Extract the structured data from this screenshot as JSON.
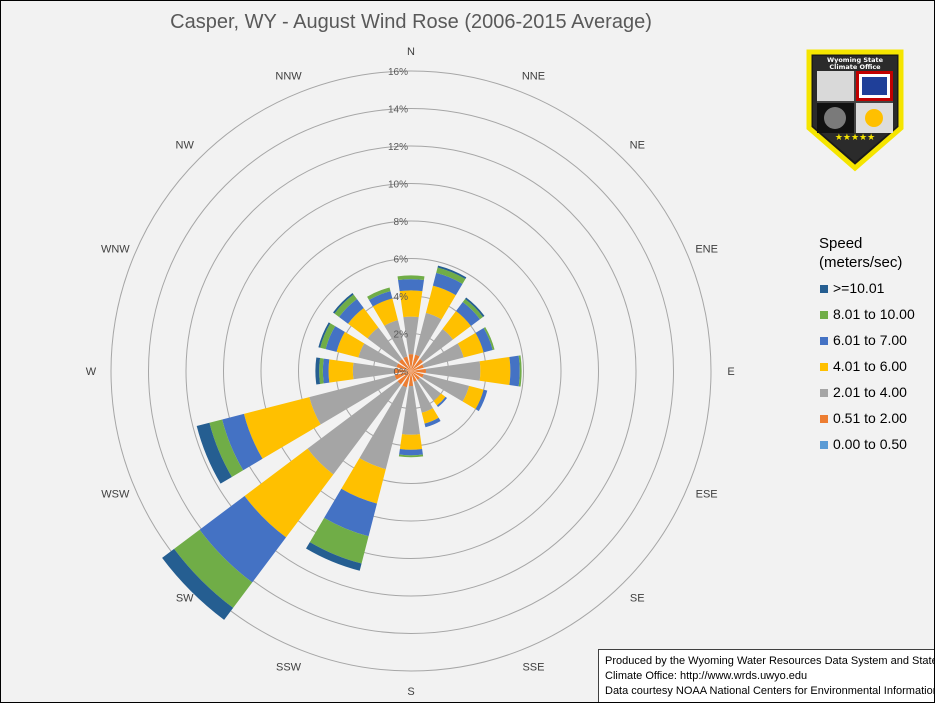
{
  "chart_data": {
    "type": "wind_rose",
    "title": "Casper, WY - August Wind Rose (2006-2015 Average)",
    "radial_axis": {
      "ticks": [
        "0%",
        "2%",
        "4%",
        "6%",
        "8%",
        "10%",
        "12%",
        "14%",
        "16%"
      ],
      "max": 16,
      "unit": "%"
    },
    "directions": [
      "N",
      "NNE",
      "NE",
      "ENE",
      "E",
      "ESE",
      "SE",
      "SSE",
      "S",
      "SSW",
      "SW",
      "WSW",
      "W",
      "WNW",
      "NW",
      "NNW"
    ],
    "speed_bins": [
      "0.00 to 0.50",
      "0.51 to 2.00",
      "2.01 to 4.00",
      "4.01 to 6.00",
      "6.01 to 7.00",
      "8.01 to 10.00",
      ">=10.01"
    ],
    "colors": [
      "#5b9bd5",
      "#ed7d31",
      "#a5a5a5",
      "#ffc000",
      "#4472c4",
      "#70ad47",
      "#255e91"
    ],
    "series_label_note": "",
    "data_percent": [
      [
        0,
        0.9,
        2.0,
        1.4,
        0.6,
        0.2,
        0.0
      ],
      [
        0,
        0.9,
        2.3,
        1.5,
        0.7,
        0.3,
        0.1
      ],
      [
        0,
        0.8,
        2.0,
        1.2,
        0.6,
        0.2,
        0.1
      ],
      [
        0,
        0.7,
        2.2,
        1.1,
        0.5,
        0.1,
        0.0
      ],
      [
        0,
        0.8,
        2.9,
        1.6,
        0.5,
        0.1,
        0.0
      ],
      [
        0,
        0.7,
        2.5,
        0.8,
        0.2,
        0.0,
        0.0
      ],
      [
        0,
        0.6,
        1.4,
        0.3,
        0.1,
        0.0,
        0.0
      ],
      [
        0,
        0.6,
        1.7,
        0.6,
        0.2,
        0.0,
        0.0
      ],
      [
        0,
        0.8,
        2.6,
        0.8,
        0.3,
        0.1,
        0.0
      ],
      [
        0,
        0.9,
        4.5,
        1.9,
        1.8,
        1.5,
        0.4
      ],
      [
        0,
        0.9,
        6.0,
        4.2,
        3.0,
        1.7,
        0.8
      ],
      [
        0,
        0.9,
        4.7,
        3.6,
        1.2,
        0.7,
        0.7
      ],
      [
        0,
        0.9,
        2.2,
        1.3,
        0.3,
        0.2,
        0.2
      ],
      [
        0,
        0.8,
        2.1,
        1.2,
        0.6,
        0.3,
        0.1
      ],
      [
        0,
        0.8,
        2.1,
        1.3,
        0.6,
        0.3,
        0.1
      ],
      [
        0,
        0.8,
        2.0,
        1.2,
        0.4,
        0.2,
        0.0
      ]
    ],
    "legend_placement": "right"
  },
  "legend": {
    "title_line1": "Speed",
    "title_line2": "(meters/sec)",
    "items": [
      ">=10.01",
      "8.01 to 10.00",
      "6.01 to 7.00",
      "4.01 to 6.00",
      "2.01 to 4.00",
      "0.51 to 2.00",
      "0.00 to 0.50"
    ],
    "colors": [
      "#255e91",
      "#70ad47",
      "#4472c4",
      "#ffc000",
      "#a5a5a5",
      "#ed7d31",
      "#5b9bd5"
    ]
  },
  "logo": {
    "text_line1": "Wyoming State",
    "text_line2": "Climate Office"
  },
  "credits": {
    "line1": "Produced by the Wyoming Water Resources Data System and State",
    "line2": "Climate Office: http://www.wrds.uwyo.edu",
    "line3": "Data courtesy NOAA National Centers for Environmental Information"
  }
}
